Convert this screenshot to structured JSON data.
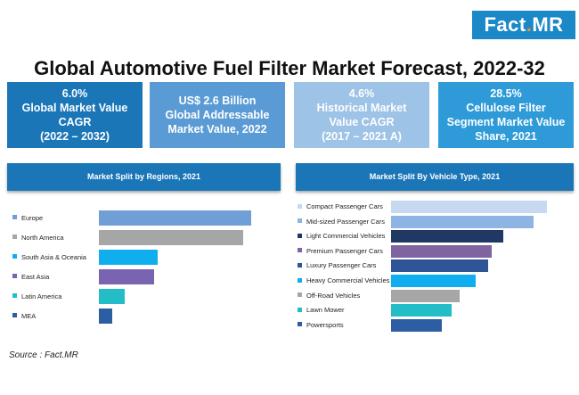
{
  "logo": {
    "text_a": "Fact",
    "text_dot": ".",
    "text_b": "MR"
  },
  "title": "Global Automotive Fuel Filter Market Forecast, 2022-32",
  "stats": [
    {
      "lines": [
        "6.0%",
        "Global Market Value",
        "CAGR",
        "(2022 – 2032)"
      ],
      "color": "#1b76b8"
    },
    {
      "lines": [
        "US$ 2.6 Billion",
        "Global Addressable",
        "Market Value, 2022"
      ],
      "color": "#5b9bd5"
    },
    {
      "lines": [
        "4.6%",
        "Historical Market",
        "Value CAGR",
        "(2017 – 2021 A)"
      ],
      "color": "#9dc3e6"
    },
    {
      "lines": [
        "28.5%",
        "Cellulose Filter",
        "Segment Market Value",
        "Share, 2021"
      ],
      "color": "#2e9ad8"
    }
  ],
  "header_color": "#1b76b8",
  "source": "Source : Fact.MR",
  "chart_data": [
    {
      "type": "bar",
      "orientation": "horizontal",
      "title": "Market Split by Regions, 2021",
      "categories": [
        "Europe",
        "North America",
        "South Asia & Oceania",
        "East Asia",
        "Latin America",
        "MEA"
      ],
      "values": [
        30,
        28.4,
        11.6,
        10.8,
        5,
        2.6
      ],
      "colors": [
        "#6f9fd6",
        "#a6a6a6",
        "#10aeef",
        "#7a63b0",
        "#22bdc6",
        "#2d5da3"
      ],
      "xlim": [
        0,
        35
      ],
      "grid": false
    },
    {
      "type": "bar",
      "orientation": "horizontal",
      "title": "Market Split By Vehicle Type, 2021",
      "categories": [
        "Compact Passenger Cars",
        "Mid-sized Passenger Cars",
        "Light Commercial Vehicles",
        "Premium Passenger Cars",
        "Luxury Passenger Cars",
        "Heavy Commercial Vehicles",
        "Off-Road Vehicles",
        "Lawn Mower",
        "Powersports"
      ],
      "values": [
        17.4,
        15.9,
        12.5,
        11.2,
        10.8,
        9.5,
        7.7,
        6.8,
        5.7
      ],
      "colors": [
        "#c6d9f1",
        "#8eb4e3",
        "#1f3864",
        "#8064a2",
        "#2f5597",
        "#10aeef",
        "#a6a6a6",
        "#22bdc6",
        "#2d5da3"
      ],
      "xlim": [
        0,
        20
      ],
      "grid": false
    }
  ]
}
